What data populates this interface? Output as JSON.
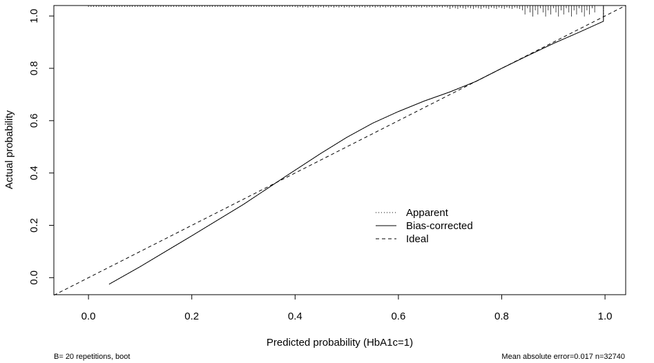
{
  "chart_data": {
    "type": "line",
    "xlabel": "Predicted probability (HbA1c=1)",
    "ylabel": "Actual probability",
    "xlim": [
      -0.067,
      1.04
    ],
    "ylim": [
      -0.065,
      1.04
    ],
    "x_ticks": [
      "0.0",
      "0.2",
      "0.4",
      "0.6",
      "0.8",
      "1.0"
    ],
    "y_ticks": [
      "0.0",
      "0.2",
      "0.4",
      "0.6",
      "0.8",
      "1.0"
    ],
    "grid": false,
    "legend_position": "center-right",
    "series": [
      {
        "name": "Apparent",
        "style": "dotted",
        "x": [
          0.04,
          0.1,
          0.2,
          0.3,
          0.38,
          0.45,
          0.5,
          0.55,
          0.6,
          0.65,
          0.7,
          0.75,
          0.8,
          0.85,
          0.9,
          0.95,
          0.997,
          0.997
        ],
        "y": [
          -0.025,
          0.042,
          0.16,
          0.28,
          0.385,
          0.475,
          0.536,
          0.59,
          0.635,
          0.675,
          0.71,
          0.75,
          0.8,
          0.848,
          0.895,
          0.938,
          0.98,
          1.04
        ]
      },
      {
        "name": "Bias-corrected",
        "style": "solid",
        "x": [
          0.04,
          0.1,
          0.2,
          0.3,
          0.38,
          0.45,
          0.5,
          0.55,
          0.6,
          0.65,
          0.7,
          0.75,
          0.8,
          0.85,
          0.9,
          0.95,
          0.997,
          0.997
        ],
        "y": [
          -0.025,
          0.042,
          0.16,
          0.28,
          0.385,
          0.475,
          0.536,
          0.59,
          0.635,
          0.675,
          0.71,
          0.75,
          0.8,
          0.848,
          0.895,
          0.938,
          0.98,
          1.04
        ]
      },
      {
        "name": "Ideal",
        "style": "dashed",
        "x": [
          -0.067,
          1.04
        ],
        "y": [
          -0.067,
          1.04
        ]
      }
    ],
    "footnote_left": "B= 20 repetitions, boot",
    "footnote_right": "Mean absolute error=0.017 n=32740"
  }
}
